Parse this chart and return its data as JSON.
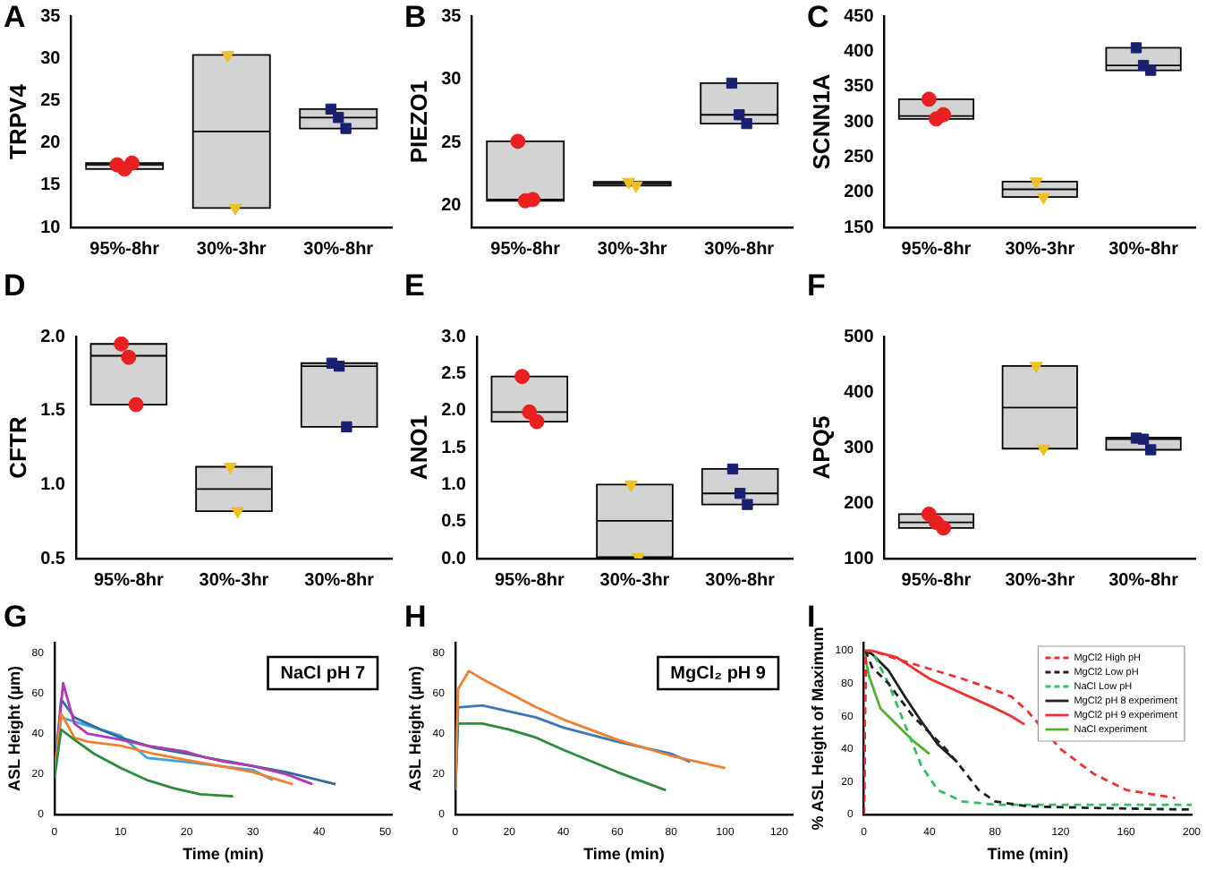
{
  "chart_data": [
    {
      "type": "box",
      "title": "A",
      "ylabel": "TRPV4",
      "categories": [
        "95%-8hr",
        "30%-3hr",
        "30%-8hr"
      ],
      "color": "#d3d3d3",
      "ylim": [
        10,
        35
      ],
      "yticks": [
        10,
        15,
        20,
        25,
        30,
        35
      ],
      "boxes": [
        {
          "low": 16.9,
          "q1": 16.9,
          "median": 17.4,
          "q3": 17.6,
          "high": 17.6
        },
        {
          "low": 12.3,
          "q1": 12.3,
          "median": 21.35,
          "q3": 30.4,
          "high": 30.4
        },
        {
          "low": 21.7,
          "q1": 21.7,
          "median": 23,
          "q3": 24,
          "high": 24
        }
      ],
      "series": [
        {
          "type": "scatter",
          "color": "#e82020",
          "marker": "circle",
          "x": [
            "95%-8hr",
            "95%-8hr",
            "95%-8hr"
          ],
          "values": [
            17.4,
            16.9,
            17.6
          ]
        },
        {
          "type": "scatter",
          "color": "#f0c020",
          "marker": "triangle",
          "x": [
            "30%-3hr",
            "30%-3hr"
          ],
          "values": [
            30.4,
            12.3
          ]
        },
        {
          "type": "scatter",
          "color": "#1a2070",
          "marker": "square",
          "x": [
            "30%-8hr",
            "30%-8hr",
            "30%-8hr"
          ],
          "values": [
            24,
            23,
            21.7
          ]
        }
      ]
    },
    {
      "type": "box",
      "title": "B",
      "ylabel": "PIEZO1",
      "categories": [
        "95%-8hr",
        "30%-3hr",
        "30%-8hr"
      ],
      "color": "#d3d3d3",
      "ylim": [
        18.3,
        35
      ],
      "yticks": [
        20,
        25,
        30,
        35
      ],
      "boxes": [
        {
          "low": 20.4,
          "q1": 20.4,
          "median": 20.5,
          "q3": 25.1,
          "high": 25.1
        },
        {
          "low": 21.6,
          "q1": 21.6,
          "median": 21.75,
          "q3": 21.9,
          "high": 21.9
        },
        {
          "low": 26.5,
          "q1": 26.5,
          "median": 27.2,
          "q3": 29.7,
          "high": 29.7
        }
      ],
      "series": [
        {
          "type": "scatter",
          "color": "#e82020",
          "marker": "circle",
          "x": [
            "95%-8hr",
            "95%-8hr",
            "95%-8hr"
          ],
          "values": [
            25.1,
            20.4,
            20.5
          ]
        },
        {
          "type": "scatter",
          "color": "#f0c020",
          "marker": "triangle",
          "x": [
            "30%-3hr",
            "30%-3hr"
          ],
          "values": [
            21.9,
            21.6
          ]
        },
        {
          "type": "scatter",
          "color": "#1a2070",
          "marker": "square",
          "x": [
            "30%-8hr",
            "30%-8hr",
            "30%-8hr"
          ],
          "values": [
            29.7,
            27.2,
            26.5
          ]
        }
      ]
    },
    {
      "type": "box",
      "title": "C",
      "ylabel": "SCNN1A",
      "categories": [
        "95%-8hr",
        "30%-3hr",
        "30%-8hr"
      ],
      "color": "#d3d3d3",
      "ylim": [
        150,
        450
      ],
      "yticks": [
        150,
        200,
        250,
        300,
        350,
        400,
        450
      ],
      "boxes": [
        {
          "low": 304,
          "q1": 304,
          "median": 308,
          "q3": 332,
          "high": 332
        },
        {
          "low": 193,
          "q1": 193,
          "median": 204,
          "q3": 215,
          "high": 215
        },
        {
          "low": 373,
          "q1": 373,
          "median": 380,
          "q3": 405,
          "high": 405
        }
      ],
      "series": [
        {
          "type": "scatter",
          "color": "#e82020",
          "marker": "circle",
          "x": [
            "95%-8hr",
            "95%-8hr",
            "95%-8hr"
          ],
          "values": [
            332,
            304,
            310
          ]
        },
        {
          "type": "scatter",
          "color": "#f0c020",
          "marker": "triangle",
          "x": [
            "30%-3hr",
            "30%-3hr"
          ],
          "values": [
            215,
            193
          ]
        },
        {
          "type": "scatter",
          "color": "#1a2070",
          "marker": "square",
          "x": [
            "30%-8hr",
            "30%-8hr",
            "30%-8hr"
          ],
          "values": [
            405,
            380,
            373
          ]
        }
      ]
    },
    {
      "type": "box",
      "title": "D",
      "ylabel": "CFTR",
      "categories": [
        "95%-8hr",
        "30%-3hr",
        "30%-8hr"
      ],
      "color": "#d3d3d3",
      "ylim": [
        0.5,
        2.0
      ],
      "yticks": [
        {
          "value": 0.5,
          "label": "0.5"
        },
        {
          "value": 1,
          "label": "1.0"
        },
        {
          "value": 1.5,
          "label": "1.5"
        },
        {
          "value": 2,
          "label": "2.0"
        }
      ],
      "boxes": [
        {
          "low": 1.54,
          "q1": 1.54,
          "median": 1.87,
          "q3": 1.95,
          "high": 1.95
        },
        {
          "low": 0.82,
          "q1": 0.82,
          "median": 0.97,
          "q3": 1.12,
          "high": 1.12
        },
        {
          "low": 1.39,
          "q1": 1.39,
          "median": 1.8,
          "q3": 1.82,
          "high": 1.82
        }
      ],
      "series": [
        {
          "type": "scatter",
          "color": "#e82020",
          "marker": "circle",
          "x": [
            "95%-8hr",
            "95%-8hr",
            "95%-8hr"
          ],
          "values": [
            1.95,
            1.86,
            1.54
          ]
        },
        {
          "type": "scatter",
          "color": "#f0c020",
          "marker": "triangle",
          "x": [
            "30%-3hr",
            "30%-3hr"
          ],
          "values": [
            1.12,
            0.82
          ]
        },
        {
          "type": "scatter",
          "color": "#1a2070",
          "marker": "square",
          "x": [
            "30%-8hr",
            "30%-8hr",
            "30%-8hr"
          ],
          "values": [
            1.82,
            1.8,
            1.39
          ]
        }
      ]
    },
    {
      "type": "box",
      "title": "E",
      "ylabel": "ANO1",
      "categories": [
        "95%-8hr",
        "30%-3hr",
        "30%-8hr"
      ],
      "color": "#d3d3d3",
      "ylim": [
        0,
        3.0
      ],
      "yticks": [
        {
          "value": 0,
          "label": "0.0"
        },
        {
          "value": 0.5,
          "label": "0.5"
        },
        {
          "value": 1,
          "label": "1.0"
        },
        {
          "value": 1.5,
          "label": "1.5"
        },
        {
          "value": 2,
          "label": "2.0"
        },
        {
          "value": 2.5,
          "label": "2.5"
        },
        {
          "value": 3,
          "label": "3.0"
        }
      ],
      "boxes": [
        {
          "low": 1.85,
          "q1": 1.85,
          "median": 1.98,
          "q3": 2.46,
          "high": 2.46
        },
        {
          "low": 0.02,
          "q1": 0.02,
          "median": 0.51,
          "q3": 1.0,
          "high": 1.0
        },
        {
          "low": 0.73,
          "q1": 0.73,
          "median": 0.88,
          "q3": 1.21,
          "high": 1.21
        }
      ],
      "series": [
        {
          "type": "scatter",
          "color": "#e82020",
          "marker": "circle",
          "x": [
            "95%-8hr",
            "95%-8hr",
            "95%-8hr"
          ],
          "values": [
            2.46,
            1.98,
            1.85
          ]
        },
        {
          "type": "scatter",
          "color": "#f0c020",
          "marker": "triangle",
          "x": [
            "30%-3hr",
            "30%-3hr"
          ],
          "values": [
            1.0,
            0.02
          ]
        },
        {
          "type": "scatter",
          "color": "#1a2070",
          "marker": "square",
          "x": [
            "30%-8hr",
            "30%-8hr",
            "30%-8hr"
          ],
          "values": [
            1.21,
            0.88,
            0.73
          ]
        }
      ]
    },
    {
      "type": "box",
      "title": "F",
      "ylabel": "APQ5",
      "categories": [
        "95%-8hr",
        "30%-3hr",
        "30%-8hr"
      ],
      "color": "#d3d3d3",
      "ylim": [
        100,
        500
      ],
      "yticks": [
        100,
        200,
        300,
        400,
        500
      ],
      "boxes": [
        {
          "low": 155,
          "q1": 155,
          "median": 165,
          "q3": 180,
          "high": 180
        },
        {
          "low": 298,
          "q1": 298,
          "median": 372,
          "q3": 447,
          "high": 447
        },
        {
          "low": 296,
          "q1": 296,
          "median": 315,
          "q3": 318,
          "high": 318
        }
      ],
      "series": [
        {
          "type": "scatter",
          "color": "#e82020",
          "marker": "circle",
          "x": [
            "95%-8hr",
            "95%-8hr",
            "95%-8hr"
          ],
          "values": [
            180,
            165,
            155
          ]
        },
        {
          "type": "scatter",
          "color": "#f0c020",
          "marker": "triangle",
          "x": [
            "30%-3hr",
            "30%-3hr"
          ],
          "values": [
            447,
            298
          ]
        },
        {
          "type": "scatter",
          "color": "#1a2070",
          "marker": "square",
          "x": [
            "30%-8hr",
            "30%-8hr",
            "30%-8hr"
          ],
          "values": [
            317,
            315,
            296
          ]
        }
      ]
    },
    {
      "type": "line",
      "title": "G",
      "xlabel": "Time (min)",
      "ylabel": "ASL Height (µm)",
      "xlim": [
        0,
        51
      ],
      "xticks": [
        0,
        10,
        20,
        30,
        40,
        50
      ],
      "ylim": [
        0,
        85
      ],
      "yticks": [
        0,
        20,
        40,
        60,
        80
      ],
      "annotations": [
        "NaCl pH 7"
      ],
      "series": [
        {
          "color": "#2e8b3e",
          "x": [
            0,
            1,
            3,
            6,
            10,
            14,
            18,
            22,
            27
          ],
          "values": [
            18,
            42,
            37,
            30,
            23,
            17,
            13,
            10,
            9
          ]
        },
        {
          "color": "#f08030",
          "x": [
            0,
            1,
            3,
            5,
            10,
            15,
            20,
            25,
            30,
            36
          ],
          "values": [
            20,
            50,
            38,
            36,
            34,
            30,
            27,
            24,
            21,
            15
          ]
        },
        {
          "color": "#b03ab0",
          "x": [
            0,
            1.3,
            3,
            5,
            10,
            14,
            18,
            20,
            23,
            26,
            30,
            35,
            39
          ],
          "values": [
            20,
            65,
            45,
            40,
            37,
            34,
            32,
            31,
            28,
            26,
            24,
            20,
            15
          ]
        },
        {
          "color": "#2e6e9e",
          "x": [
            0,
            1,
            3,
            7,
            10,
            15,
            20,
            25,
            30,
            35,
            42.5
          ],
          "values": [
            20,
            57,
            48,
            42,
            38,
            33,
            30,
            27,
            24,
            21,
            15
          ]
        },
        {
          "color": "#3aa8e0",
          "x": [
            0,
            1,
            3,
            7,
            10,
            14,
            20,
            25,
            30,
            33
          ],
          "values": [
            20,
            48,
            46,
            42,
            39,
            28,
            26,
            24,
            22,
            17
          ]
        }
      ]
    },
    {
      "type": "line",
      "title": "H",
      "xlabel": "Time (min)",
      "ylabel": "ASL Height (µm)",
      "xlim": [
        0,
        125
      ],
      "xticks": [
        0,
        20,
        40,
        60,
        80,
        100,
        120
      ],
      "ylim": [
        0,
        85
      ],
      "yticks": [
        0,
        20,
        40,
        60,
        80
      ],
      "annotations": [
        "MgCl₂ pH 9"
      ],
      "series": [
        {
          "color": "#f08030",
          "x": [
            0,
            1,
            5,
            10,
            20,
            30,
            40,
            60,
            80,
            100
          ],
          "values": [
            12,
            62,
            71,
            67,
            60,
            53,
            47,
            37,
            29,
            23
          ]
        },
        {
          "color": "#3a78b8",
          "x": [
            0,
            1,
            10,
            20,
            30,
            40,
            60,
            80,
            87
          ],
          "values": [
            12,
            53,
            54,
            51,
            48,
            43,
            36,
            30,
            26
          ]
        },
        {
          "color": "#2e8b3e",
          "x": [
            0,
            1,
            10,
            20,
            30,
            40,
            60,
            78
          ],
          "values": [
            12,
            45,
            45,
            42,
            38,
            32,
            21,
            12
          ]
        }
      ]
    },
    {
      "type": "line",
      "title": "I",
      "xlabel": "Time (min)",
      "ylabel": "% ASL Height of Maximum",
      "xlim": [
        0,
        200
      ],
      "xticks": [
        0,
        40,
        80,
        120,
        160,
        200
      ],
      "ylim": [
        0,
        105
      ],
      "yticks": [
        0,
        20,
        40,
        60,
        80,
        100
      ],
      "legend": "top right",
      "series": [
        {
          "name": "MgCl2 High pH",
          "color": "#f03030",
          "line_style": "dashed",
          "x": [
            0,
            1,
            5,
            20,
            40,
            60,
            80,
            90,
            100,
            120,
            140,
            160,
            190
          ],
          "values": [
            0,
            100,
            100,
            95,
            89,
            83,
            76,
            72,
            63,
            40,
            25,
            15,
            10
          ]
        },
        {
          "name": "MgCl2 Low pH",
          "color": "#202020",
          "line_style": "dashed",
          "x": [
            0,
            1,
            5,
            15,
            30,
            50,
            60,
            70,
            80,
            100,
            140,
            200
          ],
          "values": [
            0,
            100,
            90,
            80,
            60,
            40,
            28,
            15,
            8,
            5,
            4,
            3
          ]
        },
        {
          "name": "NaCl Low pH",
          "color": "#30c060",
          "line_style": "dashed",
          "x": [
            0,
            1,
            5,
            15,
            25,
            35,
            45,
            60,
            80,
            200
          ],
          "values": [
            0,
            100,
            100,
            80,
            55,
            30,
            15,
            8,
            6,
            6
          ]
        },
        {
          "name": "MgCl2 pH 8 experiment",
          "color": "#202020",
          "line_style": "solid",
          "x": [
            0,
            5,
            15,
            25,
            35,
            45,
            57
          ],
          "values": [
            100,
            98,
            88,
            72,
            57,
            43,
            32
          ]
        },
        {
          "name": "MgCl2 pH 9 experiment",
          "color": "#f03030",
          "line_style": "solid",
          "x": [
            0,
            5,
            20,
            40,
            60,
            80,
            90,
            98
          ],
          "values": [
            100,
            100,
            96,
            83,
            74,
            65,
            60,
            55
          ]
        },
        {
          "name": "NaCl experiment",
          "color": "#50b030",
          "line_style": "solid",
          "x": [
            0,
            3,
            10,
            20,
            30,
            40
          ],
          "values": [
            100,
            85,
            65,
            55,
            45,
            37
          ]
        }
      ]
    }
  ]
}
